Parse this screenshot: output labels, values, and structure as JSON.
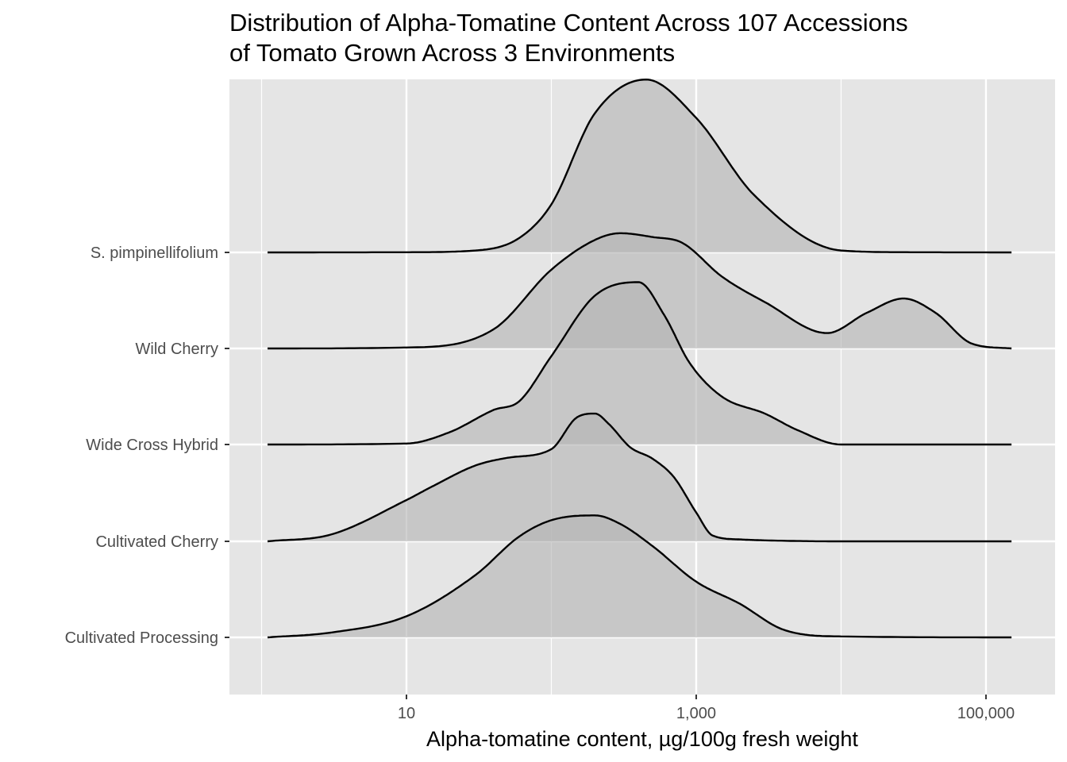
{
  "chart_data": {
    "type": "ridgeline",
    "title": [
      "Distribution of Alpha-Tomatine Content Across 107 Accessions",
      "of Tomato Grown Across 3 Environments"
    ],
    "xlabel": "Alpha-tomatine content, µg/100g fresh weight",
    "ylabel": "",
    "x_scale": "log10",
    "xlim": [
      0.6,
      300000
    ],
    "x_ticks": [
      {
        "value": 10,
        "label": "10"
      },
      {
        "value": 1000,
        "label": "1,000"
      },
      {
        "value": 100000,
        "label": "100,000"
      }
    ],
    "x_minor_gridlines": [
      1,
      100,
      10000
    ],
    "grid": true,
    "fill_color": "#b3b3b3",
    "fill_opacity": 0.6,
    "line_color": "#000000",
    "panel_color": "#e5e5e5",
    "density_max_height": 1.8,
    "categories": [
      "Cultivated Processing",
      "Cultivated Cherry",
      "Wide Cross Hybrid",
      "Wild Cherry",
      "S. pimpinellifolium"
    ],
    "series": [
      {
        "name": "S. pimpinellifolium",
        "x": [
          1.1,
          10,
          30,
          60,
          100,
          200,
          450,
          1000,
          2500,
          10000,
          30000,
          150000
        ],
        "density": [
          0,
          0.002,
          0.02,
          0.15,
          0.5,
          1.45,
          1.8,
          1.4,
          0.6,
          0.02,
          0.002,
          0
        ]
      },
      {
        "name": "Wild Cherry",
        "x": [
          1.1,
          10,
          40,
          100,
          200,
          300,
          500,
          800,
          1500,
          3000,
          8000,
          15000,
          27000,
          45000,
          80000,
          150000
        ],
        "density": [
          0,
          0.01,
          0.2,
          0.82,
          1.13,
          1.2,
          1.16,
          1.1,
          0.75,
          0.48,
          0.16,
          0.37,
          0.52,
          0.37,
          0.05,
          0
        ]
      },
      {
        "name": "Wide Cross Hybrid",
        "x": [
          1.1,
          10,
          20,
          40,
          60,
          100,
          200,
          400,
          600,
          900,
          1500,
          3000,
          5000,
          10000,
          150000
        ],
        "density": [
          0,
          0.01,
          0.13,
          0.36,
          0.45,
          0.92,
          1.55,
          1.69,
          1.35,
          0.85,
          0.5,
          0.32,
          0.15,
          0,
          0
        ]
      },
      {
        "name": "Cultivated Cherry",
        "x": [
          1.1,
          3,
          10,
          15,
          30,
          50,
          100,
          150,
          200,
          250,
          350,
          500,
          700,
          1000,
          1300,
          2000,
          3000,
          10000,
          150000
        ],
        "density": [
          0,
          0.07,
          0.43,
          0.57,
          0.79,
          0.87,
          0.96,
          1.29,
          1.33,
          1.22,
          0.98,
          0.86,
          0.67,
          0.3,
          0.06,
          0.02,
          0.01,
          0,
          0
        ]
      },
      {
        "name": "Cultivated Processing",
        "x": [
          1.1,
          3,
          10,
          30,
          60,
          100,
          200,
          300,
          500,
          1000,
          2000,
          4000,
          10000,
          150000
        ],
        "density": [
          0,
          0.05,
          0.22,
          0.65,
          1.05,
          1.22,
          1.27,
          1.18,
          0.95,
          0.58,
          0.35,
          0.08,
          0.01,
          0
        ]
      }
    ]
  }
}
